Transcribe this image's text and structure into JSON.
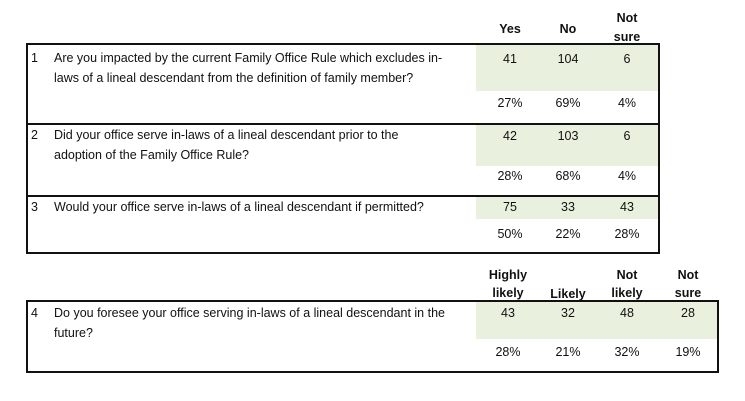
{
  "header1": {
    "yes": "Yes",
    "no": "No",
    "not_sure_1": "Not",
    "not_sure_2": "sure"
  },
  "questions": [
    {
      "num": "1",
      "line1": "Are you impacted by the current Family Office Rule which excludes in-",
      "line2": "laws of a lineal descendant from the definition of family member?",
      "counts": [
        "41",
        "104",
        "6"
      ],
      "pcts": [
        "27%",
        "69%",
        "4%"
      ]
    },
    {
      "num": "2",
      "line1": "Did your office serve in-laws of a lineal descendant prior to the",
      "line2": "adoption of the Family Office Rule?",
      "counts": [
        "42",
        "103",
        "6"
      ],
      "pcts": [
        "28%",
        "68%",
        "4%"
      ]
    },
    {
      "num": "3",
      "line1": "Would your office serve in-laws of a lineal descendant if permitted?",
      "line2": "",
      "counts": [
        "75",
        "33",
        "43"
      ],
      "pcts": [
        "50%",
        "22%",
        "28%"
      ]
    }
  ],
  "header2": {
    "highly_1": "Highly",
    "highly_2": "likely",
    "likely": "Likely",
    "not_likely_1": "Not",
    "not_likely_2": "likely",
    "not_sure_1": "Not",
    "not_sure_2": "sure"
  },
  "question4": {
    "num": "4",
    "line1": "Do you foresee your office serving in-laws of a lineal descendant in the",
    "line2": "future?",
    "counts": [
      "43",
      "32",
      "48",
      "28"
    ],
    "pcts": [
      "28%",
      "21%",
      "32%",
      "19%"
    ]
  }
}
